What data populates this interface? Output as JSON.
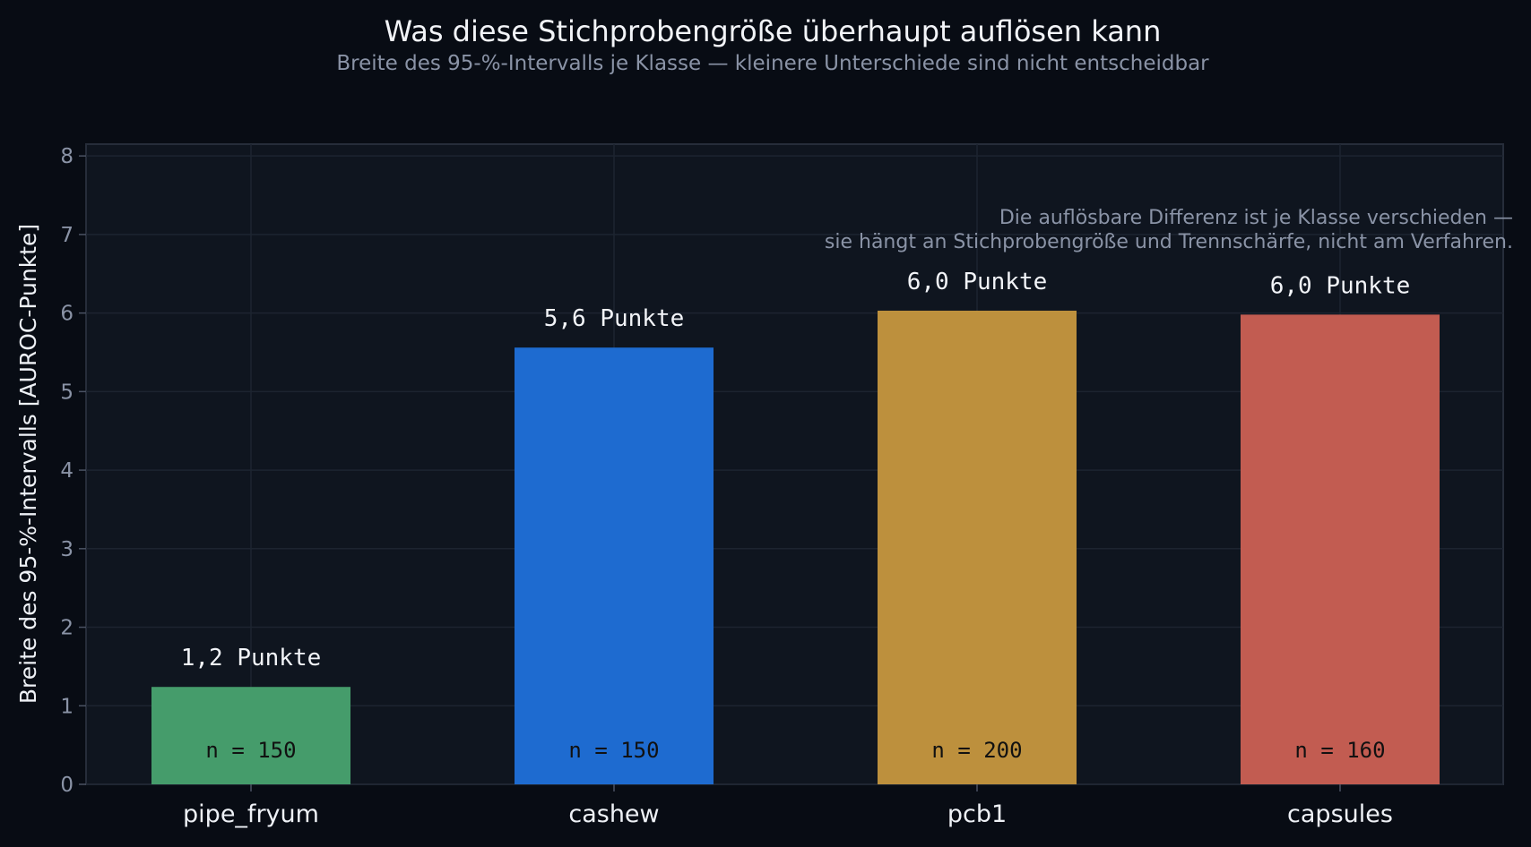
{
  "chart_data": {
    "type": "bar",
    "title": "Was diese Stichprobengröße überhaupt auflösen kann",
    "subtitle": "Breite des 95-%-Intervalls je Klasse — kleinere Unterschiede sind nicht entscheidbar",
    "xlabel": "",
    "ylabel": "Breite des 95-%-Intervalls [AUROC-Punkte]",
    "ylim": [
      0,
      8.15
    ],
    "yticks": [
      "0",
      "1",
      "2",
      "3",
      "4",
      "5",
      "6",
      "7",
      "8"
    ],
    "grid": true,
    "categories": [
      "pipe_fryum",
      "cashew",
      "pcb1",
      "capsules"
    ],
    "values": [
      1.24,
      5.56,
      6.03,
      5.98
    ],
    "value_labels": [
      "1,2 Punkte",
      "5,6 Punkte",
      "6,0 Punkte",
      "6,0 Punkte"
    ],
    "n_labels": [
      "n = 150",
      "n = 150",
      "n = 200",
      "n = 160"
    ],
    "colors": [
      "#459c6b",
      "#1e6bd0",
      "#bd903d",
      "#c25c51"
    ],
    "annotation": [
      "Die auflösbare Differenz ist je Klasse verschieden —",
      "sie hängt an Stichprobengröße und Trennschärfe, nicht am Verfahren."
    ]
  }
}
